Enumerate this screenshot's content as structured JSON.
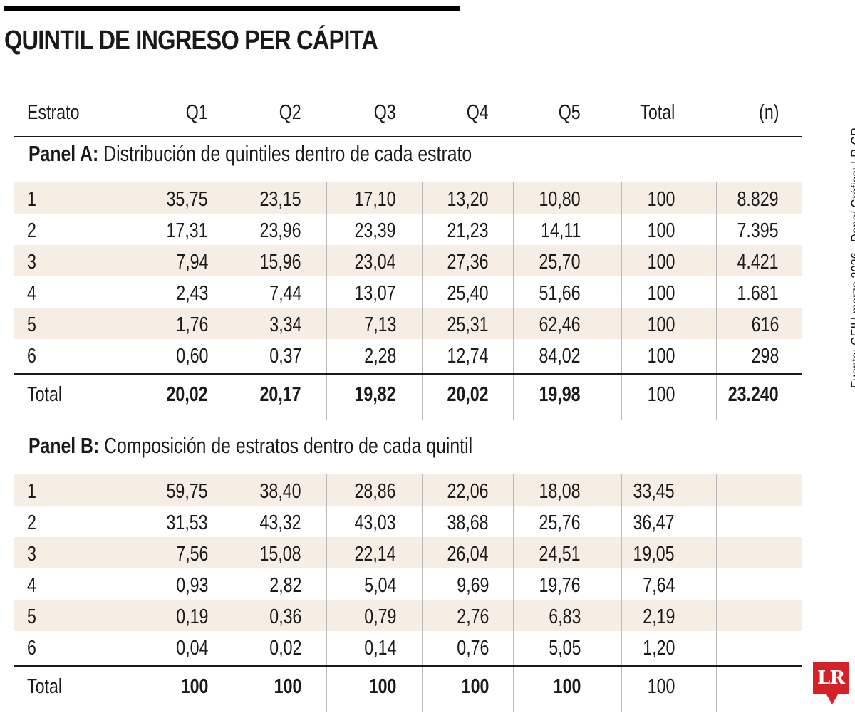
{
  "title": "QUINTIL DE INGRESO PER CÁPITA",
  "source": "Fuente: GEIH marzo 2026 - Dane/ Gráfico: LR-GR",
  "logo": "LR",
  "colors": {
    "band": "#f6ede4",
    "logo": "#d42027",
    "text": "#1a1a1a"
  },
  "chart_data": {
    "type": "table",
    "title": "QUINTIL DE INGRESO PER CÁPITA",
    "columns": [
      "Estrato",
      "Q1",
      "Q2",
      "Q3",
      "Q4",
      "Q5",
      "Total",
      "(n)"
    ],
    "panels": [
      {
        "label": "Panel A:",
        "subtitle": "Distribución de quintiles dentro de cada estrato",
        "rows": [
          [
            "1",
            "35,75",
            "23,15",
            "17,10",
            "13,20",
            "10,80",
            "100",
            "8.829"
          ],
          [
            "2",
            "17,31",
            "23,96",
            "23,39",
            "21,23",
            "14,11",
            "100",
            "7.395"
          ],
          [
            "3",
            "7,94",
            "15,96",
            "23,04",
            "27,36",
            "25,70",
            "100",
            "4.421"
          ],
          [
            "4",
            "2,43",
            "7,44",
            "13,07",
            "25,40",
            "51,66",
            "100",
            "1.681"
          ],
          [
            "5",
            "1,76",
            "3,34",
            "7,13",
            "25,31",
            "62,46",
            "100",
            "616"
          ],
          [
            "6",
            "0,60",
            "0,37",
            "2,28",
            "12,74",
            "84,02",
            "100",
            "298"
          ]
        ],
        "total": [
          "Total",
          "20,02",
          "20,17",
          "19,82",
          "20,02",
          "19,98",
          "100",
          "23.240"
        ]
      },
      {
        "label": "Panel B:",
        "subtitle": "Composición de estratos dentro de cada quintil",
        "rows": [
          [
            "1",
            "59,75",
            "38,40",
            "28,86",
            "22,06",
            "18,08",
            "33,45",
            ""
          ],
          [
            "2",
            "31,53",
            "43,32",
            "43,03",
            "38,68",
            "25,76",
            "36,47",
            ""
          ],
          [
            "3",
            "7,56",
            "15,08",
            "22,14",
            "26,04",
            "24,51",
            "19,05",
            ""
          ],
          [
            "4",
            "0,93",
            "2,82",
            "5,04",
            "9,69",
            "19,76",
            "7,64",
            ""
          ],
          [
            "5",
            "0,19",
            "0,36",
            "0,79",
            "2,76",
            "6,83",
            "2,19",
            ""
          ],
          [
            "6",
            "0,04",
            "0,02",
            "0,14",
            "0,76",
            "5,05",
            "1,20",
            ""
          ]
        ],
        "total": [
          "Total",
          "100",
          "100",
          "100",
          "100",
          "100",
          "100",
          ""
        ]
      }
    ]
  }
}
